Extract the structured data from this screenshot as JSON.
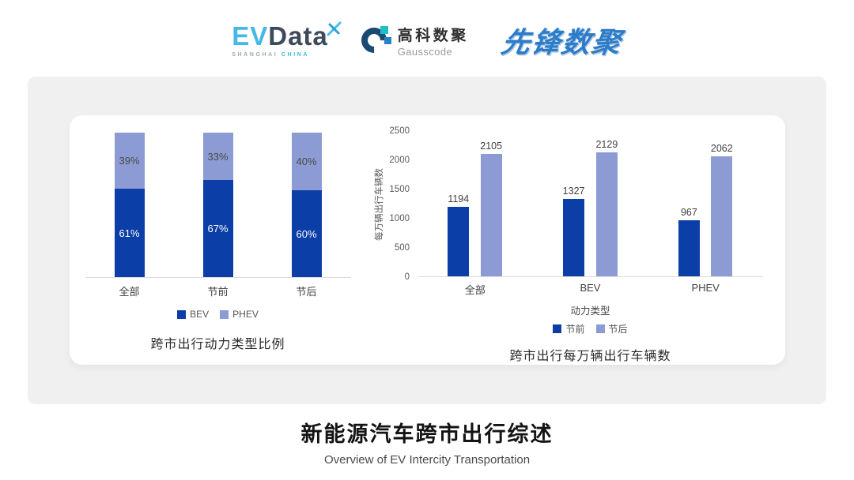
{
  "header": {
    "evdata_logo": {
      "part1": "EV",
      "part2": "Data",
      "sub1": "SHANGHAI",
      "sub2": "CHINA",
      "accent_blue": "#45B8E6",
      "dark_slate": "#3D4A5A"
    },
    "gausscode_logo": {
      "cn": "高科数聚",
      "en": "Gausscode",
      "mark_dark": "#1B4A72",
      "mark_teal": "#1FBFC9",
      "mark_blue": "#2C80C2"
    },
    "pioneer_logo": {
      "text": "先锋数聚",
      "color": "#2B7CC9"
    }
  },
  "chart_data": [
    {
      "type": "bar",
      "subtype": "stacked-percent",
      "title": "跨市出行动力类型比例",
      "categories": [
        "全部",
        "节前",
        "节后"
      ],
      "series": [
        {
          "name": "BEV",
          "color": "#0C3EA8",
          "values": [
            61,
            67,
            60
          ],
          "unit": "%",
          "label_color": "#FFFFFF"
        },
        {
          "name": "PHEV",
          "color": "#8D9BD4",
          "values": [
            39,
            33,
            40
          ],
          "unit": "%",
          "label_color": "#4A4A4A"
        }
      ],
      "ylim": [
        0,
        100
      ],
      "grid": false,
      "legend_position": "bottom"
    },
    {
      "type": "bar",
      "subtype": "grouped",
      "title": "跨市出行每万辆出行车辆数",
      "categories": [
        "全部",
        "BEV",
        "PHEV"
      ],
      "series": [
        {
          "name": "节前",
          "color": "#0C3EA8",
          "values": [
            1194,
            1327,
            967
          ]
        },
        {
          "name": "节后",
          "color": "#8D9BD4",
          "values": [
            2105,
            2129,
            2062
          ]
        }
      ],
      "xlabel": "动力类型",
      "ylabel": "每万辆出行车辆数",
      "yticks": [
        0,
        500,
        1000,
        1500,
        2000,
        2500
      ],
      "ylim": [
        0,
        2500
      ],
      "grid": false,
      "legend_position": "bottom"
    }
  ],
  "footer": {
    "title": "新能源汽车跨市出行综述",
    "subtitle": "Overview of EV Intercity Transportation"
  }
}
